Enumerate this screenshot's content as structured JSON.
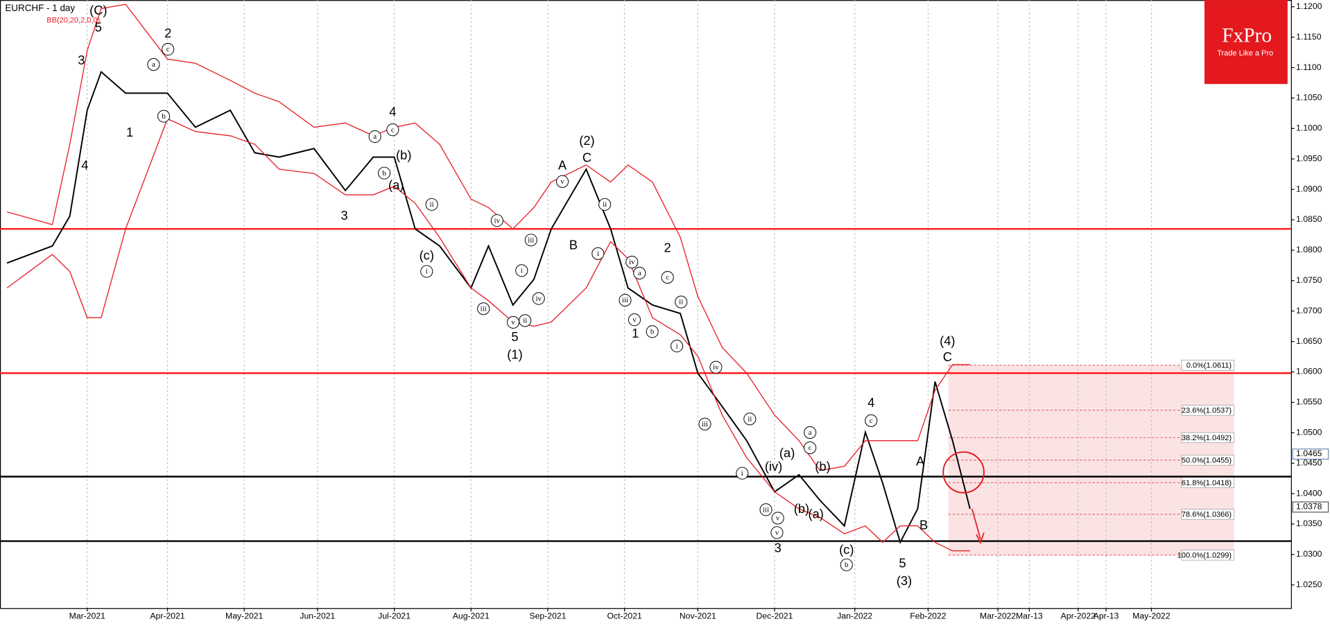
{
  "chart_data": {
    "type": "line",
    "title": "EURCHF - 1 day",
    "subtitle": "BB(20,20,2,0,0)",
    "logo": {
      "name": "FxPro",
      "tagline": "Trade Like a Pro"
    },
    "x": [
      "2021-01-27",
      "2021-02-15",
      "2021-02-22",
      "2021-03-01",
      "2021-03-05",
      "2021-03-16",
      "2021-04-01",
      "2021-04-13",
      "2021-04-27",
      "2021-05-06",
      "2021-05-17",
      "2021-05-31",
      "2021-06-11",
      "2021-06-23",
      "2021-07-01",
      "2021-07-09",
      "2021-07-20",
      "2021-08-02",
      "2021-08-09",
      "2021-08-18",
      "2021-08-26",
      "2021-09-02",
      "2021-09-16",
      "2021-09-27",
      "2021-10-04",
      "2021-10-13",
      "2021-10-25",
      "2021-11-01",
      "2021-11-10",
      "2021-11-19",
      "2021-12-01",
      "2021-12-10",
      "2021-12-20",
      "2021-12-29",
      "2022-01-06",
      "2022-01-13",
      "2022-01-20",
      "2022-01-27",
      "2022-02-03",
      "2022-02-10",
      "2022-02-17"
    ],
    "series": [
      {
        "color": "#000000",
        "values": [
          1.0779,
          1.0807,
          1.0856,
          1.103,
          1.1093,
          1.1058,
          1.1058,
          1.1002,
          1.103,
          1.096,
          1.0953,
          1.0967,
          1.0898,
          1.0953,
          1.0953,
          1.0835,
          1.0807,
          1.0738,
          1.0807,
          1.071,
          1.0752,
          1.0835,
          1.0933,
          1.0835,
          1.0738,
          1.071,
          1.0696,
          1.0598,
          1.0543,
          1.0487,
          1.0403,
          1.0431,
          1.0389,
          1.0347,
          1.0501,
          1.0417,
          1.032,
          1.0375,
          1.0584,
          1.0487,
          1.0375
        ]
      },
      {
        "color": "#e8202a",
        "values": [
          1.0863,
          1.0842,
          1.0974,
          1.1128,
          1.1197,
          1.1204,
          1.1114,
          1.1107,
          1.1079,
          1.1058,
          1.1044,
          1.1002,
          1.1009,
          1.0988,
          1.1002,
          1.1009,
          1.0974,
          1.0884,
          1.087,
          1.0835,
          1.087,
          1.0912,
          1.094,
          1.0912,
          1.094,
          1.0912,
          1.0821,
          1.0724,
          1.064,
          1.0598,
          1.0529,
          1.0487,
          1.0438,
          1.0445,
          1.0487,
          1.0487,
          1.0487,
          1.0487,
          1.057,
          1.0612,
          1.0612
        ]
      },
      {
        "color": "#e8202a",
        "values": [
          1.0738,
          1.0793,
          1.0765,
          1.0689,
          1.0689,
          1.0835,
          1.1016,
          1.0995,
          1.0988,
          1.0974,
          1.0933,
          1.0926,
          1.0891,
          1.0891,
          1.0905,
          1.0877,
          1.0821,
          1.0738,
          1.0717,
          1.0682,
          1.0675,
          1.0682,
          1.0738,
          1.0814,
          1.0786,
          1.0689,
          1.0661,
          1.0626,
          1.0529,
          1.0459,
          1.0403,
          1.0375,
          1.0361,
          1.0334,
          1.0347,
          1.032,
          1.0347,
          1.0347,
          1.032,
          1.0306,
          1.0306
        ]
      }
    ],
    "xlim": [
      "2021-01-25",
      "2022-06-27"
    ],
    "xticks": [
      {
        "value": "2021-03-01",
        "label": "Mar-2021"
      },
      {
        "value": "2021-04-01",
        "label": "Apr-2021"
      },
      {
        "value": "2021-05-03",
        "label": "May-2021"
      },
      {
        "value": "2021-06-01",
        "label": "Jun-2021"
      },
      {
        "value": "2021-07-01",
        "label": "Jul-2021"
      },
      {
        "value": "2021-08-02",
        "label": "Aug-2021"
      },
      {
        "value": "2021-09-01",
        "label": "Sep-2021"
      },
      {
        "value": "2021-10-01",
        "label": "Oct-2021"
      },
      {
        "value": "2021-11-01",
        "label": "Nov-2021"
      },
      {
        "value": "2021-12-01",
        "label": "Dec-2021"
      },
      {
        "value": "2022-01-03",
        "label": "Jan-2022"
      },
      {
        "value": "2022-02-01",
        "label": "Feb-2022"
      },
      {
        "value": "2022-03-01",
        "label": "Mar-2022"
      },
      {
        "value": "2022-03-14",
        "label": "Mar-13"
      },
      {
        "value": "2022-04-01",
        "label": "Apr-2022"
      },
      {
        "value": "2022-04-13",
        "label": "Apr-13"
      },
      {
        "value": "2022-05-02",
        "label": "May-2022"
      }
    ],
    "ylim": [
      1.0212,
      1.1211
    ],
    "yticks": [
      {
        "value": 1.025,
        "label": "1.0250"
      },
      {
        "value": 1.03,
        "label": "1.0300"
      },
      {
        "value": 1.035,
        "label": "1.0350"
      },
      {
        "value": 1.04,
        "label": "1.0400"
      },
      {
        "value": 1.045,
        "label": "1.0450"
      },
      {
        "value": 1.05,
        "label": "1.0500"
      },
      {
        "value": 1.055,
        "label": "1.0550"
      },
      {
        "value": 1.06,
        "label": "1.0600"
      },
      {
        "value": 1.065,
        "label": "1.0650"
      },
      {
        "value": 1.07,
        "label": "1.0700"
      },
      {
        "value": 1.075,
        "label": "1.0750"
      },
      {
        "value": 1.08,
        "label": "1.0800"
      },
      {
        "value": 1.085,
        "label": "1.0850"
      },
      {
        "value": 1.09,
        "label": "1.0900"
      },
      {
        "value": 1.095,
        "label": "1.0950"
      },
      {
        "value": 1.1,
        "label": "1.1000"
      },
      {
        "value": 1.105,
        "label": "1.1050"
      },
      {
        "value": 1.11,
        "label": "1.1100"
      },
      {
        "value": 1.115,
        "label": "1.1150"
      },
      {
        "value": 1.12,
        "label": "1.1200"
      }
    ],
    "xgrid": true,
    "hlines": [
      {
        "value": 1.0835,
        "color": "#ff1a1a"
      },
      {
        "value": 1.0598,
        "color": "#ff1a1a"
      },
      {
        "value": 1.0428,
        "color": "#000000"
      },
      {
        "value": 1.0322,
        "color": "#000000"
      }
    ],
    "fib_levels": [
      {
        "value": 1.0611,
        "label": "0.0%(1.0611)"
      },
      {
        "value": 1.0537,
        "label": "23.6%(1.0537)"
      },
      {
        "value": 1.0492,
        "label": "38.2%(1.0492)"
      },
      {
        "value": 1.0455,
        "label": "50.0%(1.0455)"
      },
      {
        "value": 1.0418,
        "label": "61.8%(1.0418)"
      },
      {
        "value": 1.0366,
        "label": "78.6%(1.0366)"
      },
      {
        "value": 1.0299,
        "label": "100.0%(1.0299)"
      }
    ],
    "price_labels": [
      1.0465,
      1.0378
    ],
    "wave_labels": [
      "(C)",
      "5",
      "3",
      "4",
      "1",
      "2",
      "4",
      "3",
      "A",
      "(2)",
      "C",
      "B",
      "5",
      "(1)",
      "2",
      "1",
      "3",
      "4",
      "(4)",
      "C",
      "A",
      "B",
      "5",
      "(3)",
      "(b)",
      "(a)",
      "(c)",
      "(iv)",
      "(a)",
      "(b)",
      "(b)",
      "(a)",
      "(c)"
    ],
    "circled_labels": [
      "a",
      "c",
      "b",
      "a",
      "c",
      "b",
      "ii",
      "iv",
      "iii",
      "i",
      "i",
      "iv",
      "iii",
      "v",
      "ii",
      "v",
      "ii",
      "i",
      "iv",
      "a",
      "iii",
      "c",
      "ii",
      "v",
      "b",
      "i",
      "iv",
      "iii",
      "ii",
      "i",
      "a",
      "c",
      "iii",
      "v",
      "v",
      "c",
      "b"
    ]
  }
}
